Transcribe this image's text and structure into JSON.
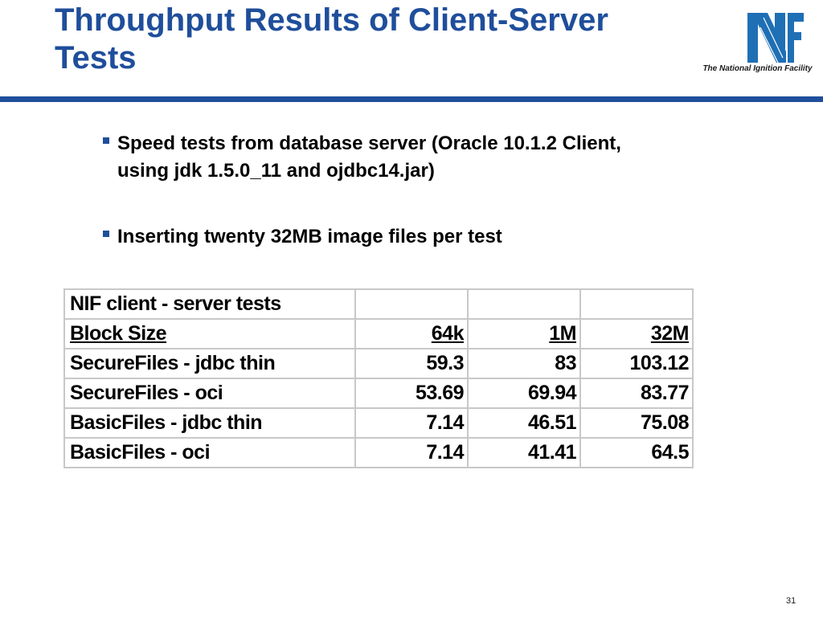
{
  "slide": {
    "title": "Throughput Results of Client-Server Tests",
    "logo_caption": "The National Ignition Facility",
    "brand_color": "#1f4e9b",
    "page_number": "31"
  },
  "bullets": [
    "Speed tests from database server (Oracle 10.1.2 Client, using jdk 1.5.0_11 and ojdbc14.jar)",
    "Inserting twenty 32MB image files per test"
  ],
  "table": {
    "caption": "NIF client - server tests",
    "header": [
      "Block Size",
      "64k",
      "1M",
      "32M"
    ],
    "rows": [
      [
        "SecureFiles - jdbc thin",
        "59.3",
        "83",
        "103.12"
      ],
      [
        "SecureFiles - oci",
        "53.69",
        "69.94",
        "83.77"
      ],
      [
        "BasicFiles - jdbc thin",
        "7.14",
        "46.51",
        "75.08"
      ],
      [
        "BasicFiles - oci",
        "7.14",
        "41.41",
        "64.5"
      ]
    ]
  }
}
